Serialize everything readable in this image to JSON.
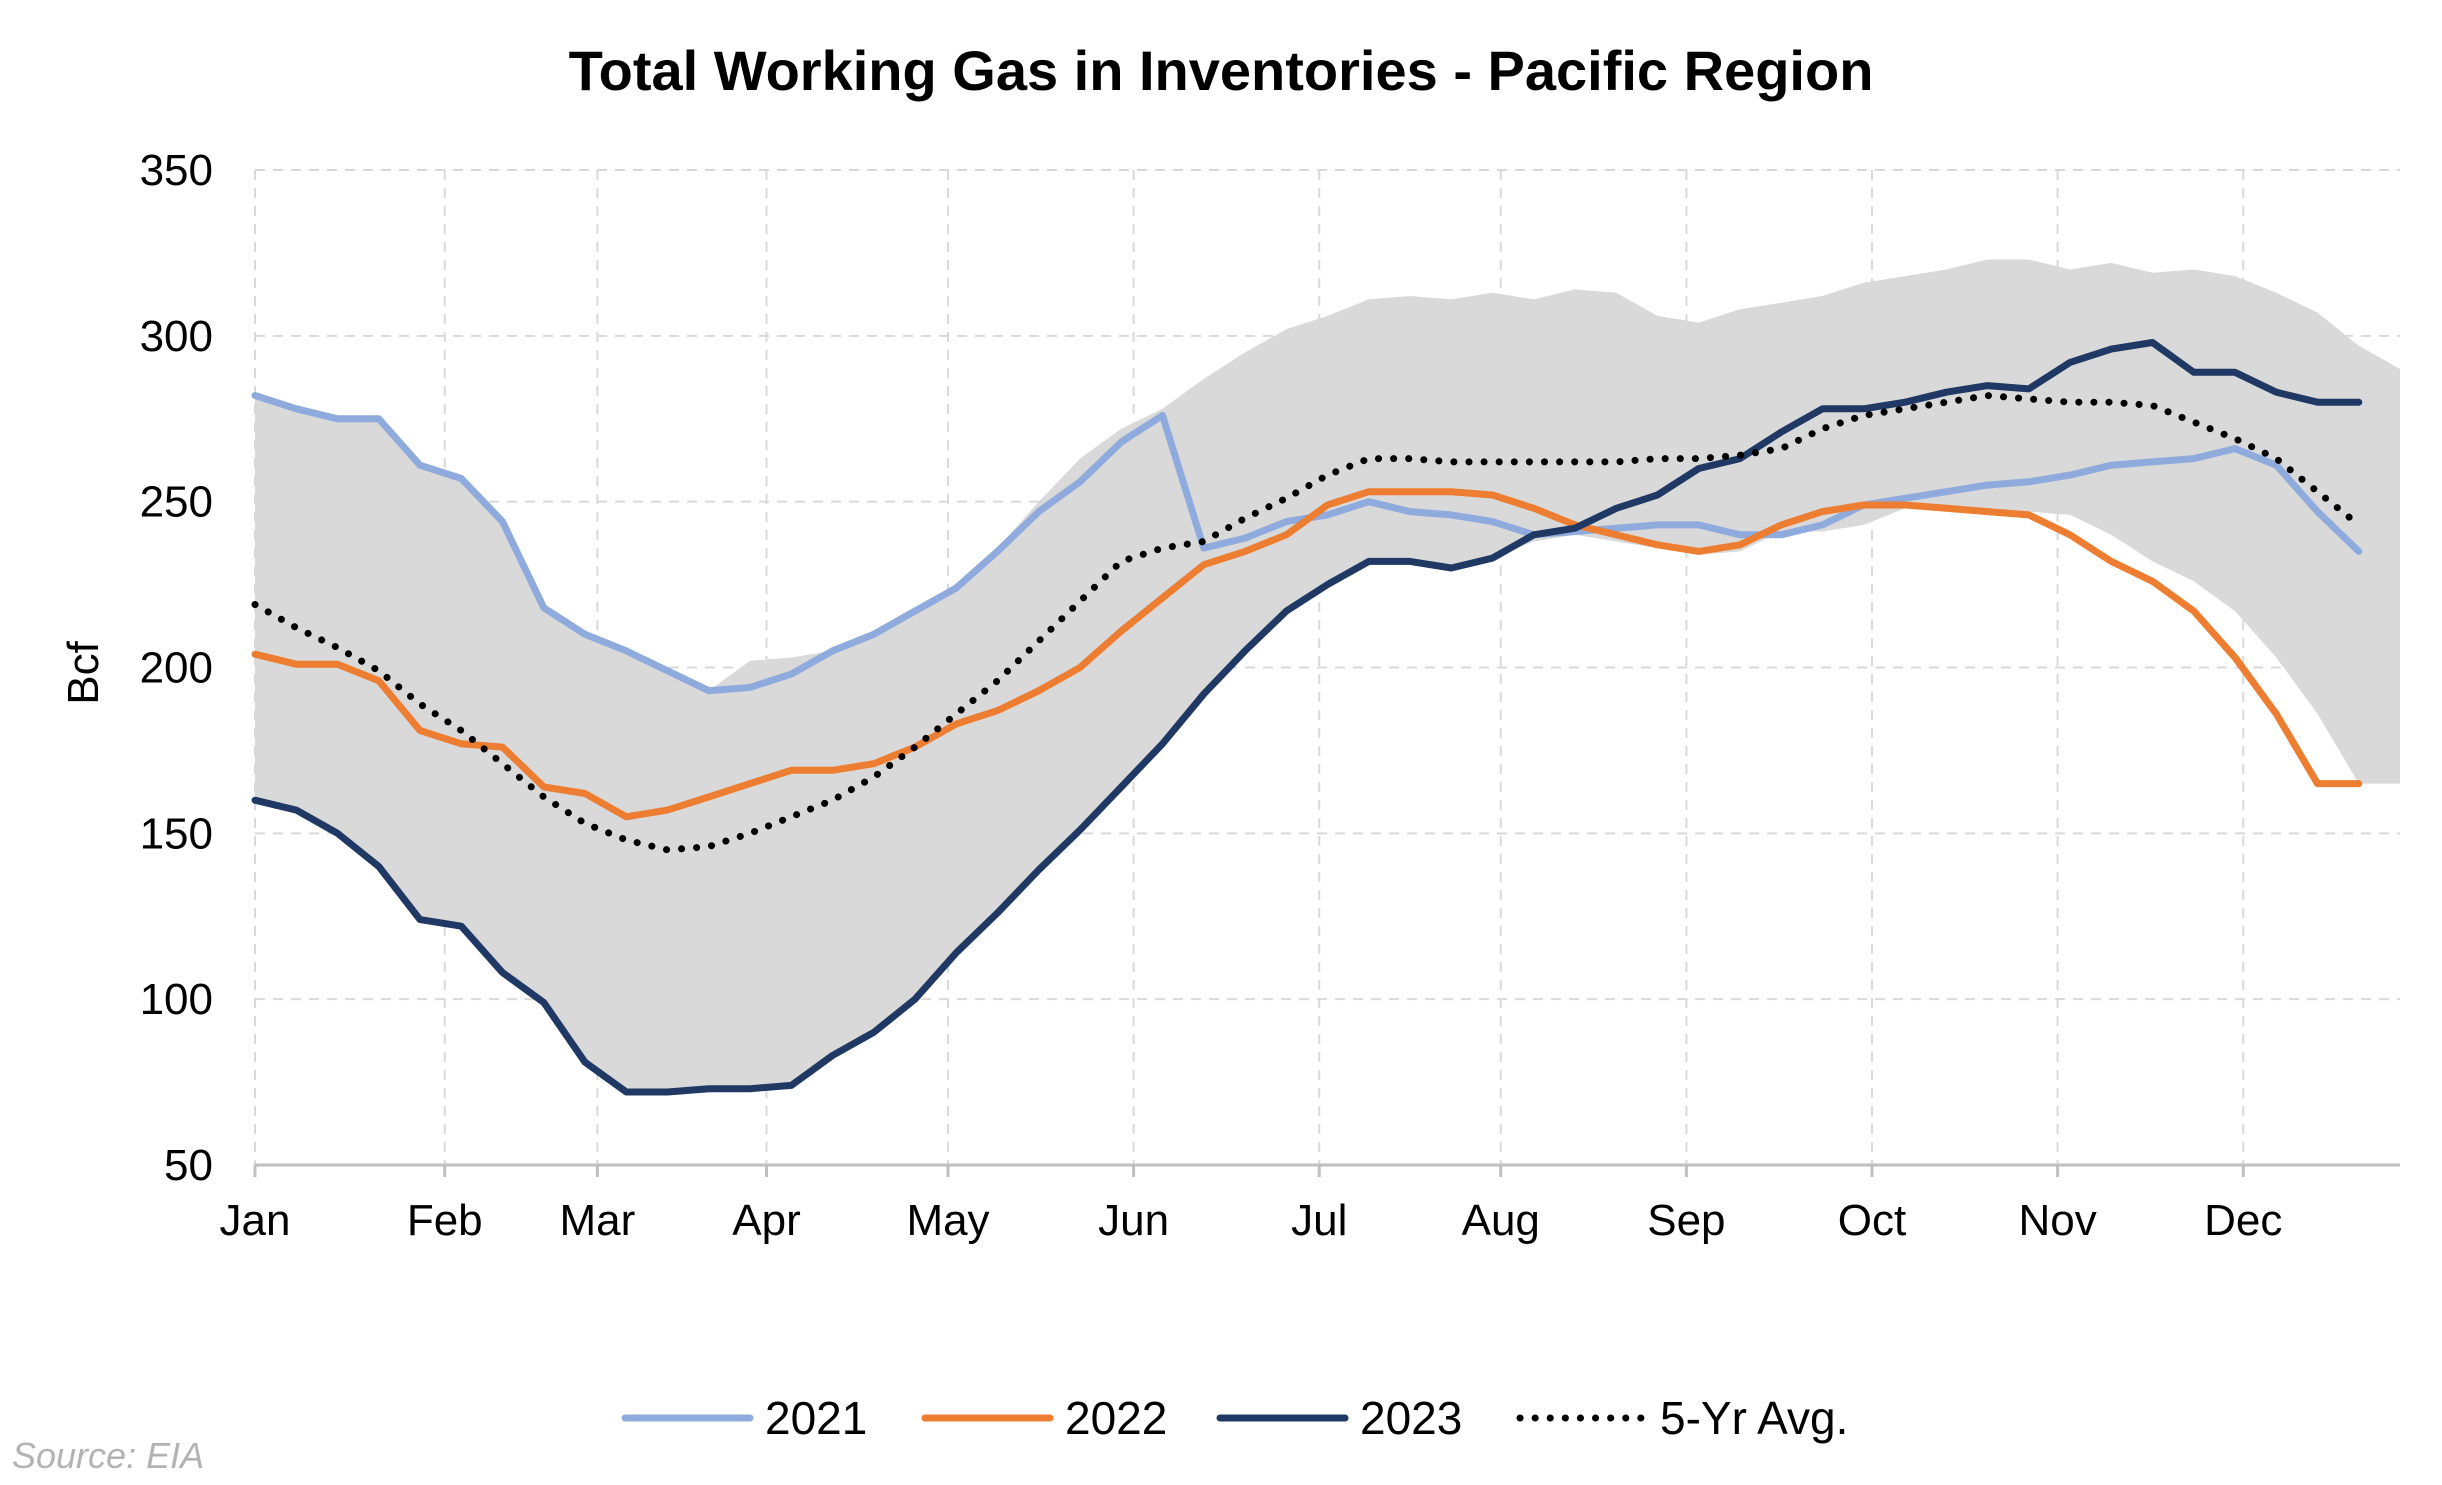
{
  "chart_data": {
    "type": "line",
    "title": "Total Working Gas in Inventories - Pacific Region",
    "ylabel": "Bcf",
    "xlabel": "",
    "ylim": [
      50,
      350
    ],
    "yticks": [
      50,
      100,
      150,
      200,
      250,
      300,
      350
    ],
    "months": [
      "Jan",
      "Feb",
      "Mar",
      "Apr",
      "May",
      "Jun",
      "Jul",
      "Aug",
      "Sep",
      "Oct",
      "Nov",
      "Dec"
    ],
    "x": [
      1,
      2,
      3,
      4,
      5,
      6,
      7,
      8,
      9,
      10,
      11,
      12,
      13,
      14,
      15,
      16,
      17,
      18,
      19,
      20,
      21,
      22,
      23,
      24,
      25,
      26,
      27,
      28,
      29,
      30,
      31,
      32,
      33,
      34,
      35,
      36,
      37,
      38,
      39,
      40,
      41,
      42,
      43,
      44,
      45,
      46,
      47,
      48,
      49,
      50,
      51,
      52,
      53
    ],
    "month_start_weeks": [
      1,
      5.6,
      9.3,
      13.4,
      17.8,
      22.3,
      26.8,
      31.2,
      35.7,
      40.2,
      44.7,
      49.2
    ],
    "grid": true,
    "legend_position": "bottom",
    "range_band": {
      "color": "#d9d9d9",
      "upper": [
        282,
        278,
        275,
        275,
        261,
        257,
        244,
        218,
        210,
        205,
        199,
        193,
        202,
        203,
        205,
        210,
        217,
        224,
        236,
        250,
        263,
        272,
        278,
        287,
        295,
        302,
        306,
        311,
        312,
        311,
        313,
        311,
        314,
        313,
        306,
        304,
        308,
        310,
        312,
        316,
        318,
        320,
        323,
        323,
        320,
        322,
        319,
        320,
        318,
        313,
        307,
        297,
        290
      ],
      "lower": [
        160,
        157,
        150,
        140,
        124,
        122,
        108,
        99,
        81,
        72,
        72,
        73,
        73,
        74,
        83,
        90,
        100,
        114,
        126,
        139,
        151,
        164,
        177,
        192,
        205,
        217,
        225,
        232,
        232,
        230,
        233,
        238,
        240,
        238,
        236,
        234,
        235,
        241,
        241,
        243,
        248,
        249,
        248,
        247,
        246,
        240,
        232,
        226,
        217,
        203,
        186,
        165,
        165
      ]
    },
    "series": [
      {
        "name": "2021",
        "color": "#8faadc",
        "style": "solid",
        "values": [
          282,
          278,
          275,
          275,
          261,
          257,
          244,
          218,
          210,
          205,
          199,
          193,
          194,
          198,
          205,
          210,
          217,
          224,
          235,
          247,
          256,
          268,
          276,
          236,
          239,
          244,
          246,
          250,
          247,
          246,
          244,
          240,
          241,
          242,
          243,
          243,
          240,
          240,
          243,
          249,
          251,
          253,
          255,
          256,
          258,
          261,
          262,
          263,
          266,
          261,
          247,
          235,
          null
        ]
      },
      {
        "name": "2022",
        "color": "#ed7d31",
        "style": "solid",
        "values": [
          204,
          201,
          201,
          196,
          181,
          177,
          176,
          164,
          162,
          155,
          157,
          161,
          165,
          169,
          169,
          171,
          176,
          183,
          187,
          193,
          200,
          211,
          221,
          231,
          235,
          240,
          249,
          253,
          253,
          253,
          252,
          248,
          243,
          240,
          237,
          235,
          237,
          243,
          247,
          249,
          249,
          248,
          247,
          246,
          240,
          232,
          226,
          217,
          203,
          186,
          165,
          165,
          null
        ]
      },
      {
        "name": "2023",
        "color": "#203864",
        "style": "solid",
        "values": [
          160,
          157,
          150,
          140,
          124,
          122,
          108,
          99,
          81,
          72,
          72,
          73,
          73,
          74,
          83,
          90,
          100,
          114,
          126,
          139,
          151,
          164,
          177,
          192,
          205,
          217,
          225,
          232,
          232,
          230,
          233,
          240,
          242,
          248,
          252,
          260,
          263,
          271,
          278,
          278,
          280,
          283,
          285,
          284,
          292,
          296,
          298,
          289,
          289,
          283,
          280,
          280,
          null
        ]
      },
      {
        "name": "5-Yr Avg.",
        "color": "#000000",
        "style": "dotted",
        "values": [
          219,
          212,
          206,
          199,
          189,
          181,
          171,
          161,
          153,
          148,
          145,
          146,
          150,
          155,
          160,
          167,
          176,
          186,
          196,
          208,
          220,
          232,
          236,
          238,
          245,
          251,
          258,
          263,
          263,
          262,
          262,
          262,
          262,
          262,
          263,
          263,
          264,
          266,
          272,
          276,
          278,
          280,
          282,
          281,
          280,
          280,
          279,
          274,
          269,
          263,
          253,
          243,
          null
        ]
      }
    ],
    "source": "Source: EIA"
  }
}
